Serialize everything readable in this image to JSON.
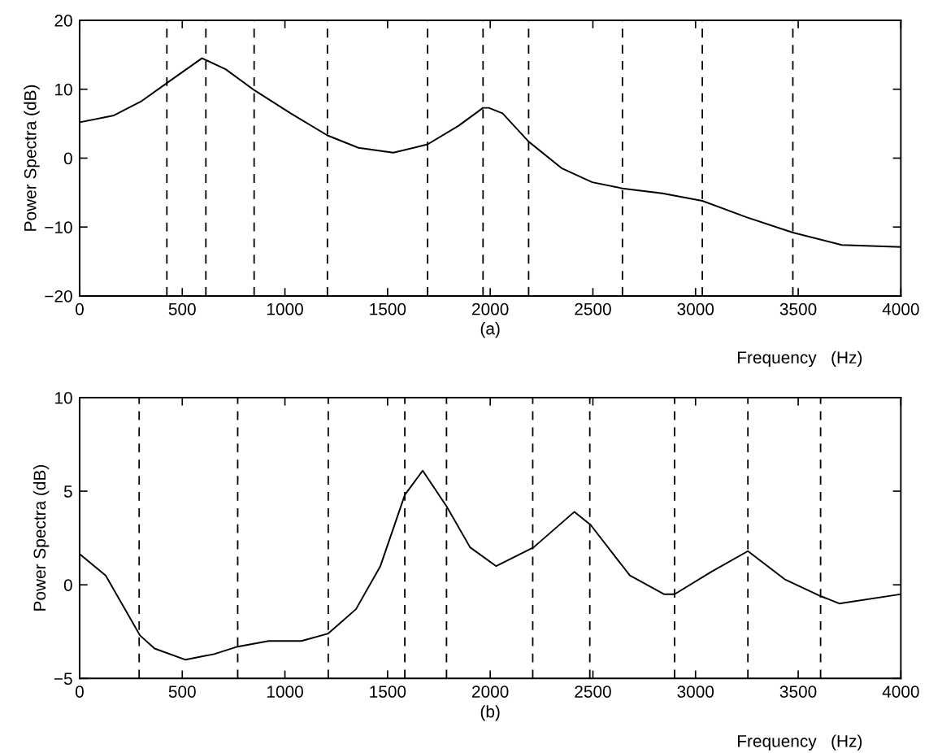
{
  "chart_data": [
    {
      "type": "line",
      "xlabel": "Frequency   (Hz)",
      "ylabel": "Power Spectra (dB)",
      "annotations": [
        "(a)"
      ],
      "xlim": [
        0,
        4000
      ],
      "ylim": [
        -20,
        20
      ],
      "xticks": [
        0,
        500,
        1000,
        1500,
        2000,
        2500,
        3000,
        3500,
        4000
      ],
      "yticks": [
        {
          "value": -20,
          "label": "−20"
        },
        {
          "value": -10,
          "label": "−10"
        },
        0,
        10,
        20
      ],
      "series": [
        {
          "color": "#000000",
          "x": [
            0,
            167,
            298,
            425,
            596,
            711,
            854,
            1028,
            1207,
            1358,
            1528,
            1695,
            1846,
            1965,
            1993,
            2060,
            2187,
            2350,
            2497,
            2644,
            2838,
            3033,
            3251,
            3474,
            3712,
            4000
          ],
          "values": [
            5.2,
            6.2,
            8.2,
            10.9,
            14.5,
            12.9,
            9.8,
            6.5,
            3.3,
            1.5,
            0.8,
            2.0,
            4.7,
            7.3,
            7.3,
            6.5,
            2.4,
            -1.5,
            -3.5,
            -4.4,
            -5.1,
            -6.2,
            -8.6,
            -10.8,
            -12.6,
            -12.9
          ]
        }
      ],
      "ref_lines": [
        {
          "axis": "x",
          "value": 425,
          "color": "#000000",
          "line_style": "dashed"
        },
        {
          "axis": "x",
          "value": 615,
          "color": "#000000",
          "line_style": "dashed"
        },
        {
          "axis": "x",
          "value": 850,
          "color": "#000000",
          "line_style": "dashed"
        },
        {
          "axis": "x",
          "value": 1207,
          "color": "#000000",
          "line_style": "dashed"
        },
        {
          "axis": "x",
          "value": 1695,
          "color": "#000000",
          "line_style": "dashed"
        },
        {
          "axis": "x",
          "value": 1965,
          "color": "#000000",
          "line_style": "dashed"
        },
        {
          "axis": "x",
          "value": 2187,
          "color": "#000000",
          "line_style": "dashed"
        },
        {
          "axis": "x",
          "value": 2644,
          "color": "#000000",
          "line_style": "dashed"
        },
        {
          "axis": "x",
          "value": 3033,
          "color": "#000000",
          "line_style": "dashed"
        },
        {
          "axis": "x",
          "value": 3474,
          "color": "#000000",
          "line_style": "dashed"
        }
      ],
      "grid": false,
      "line_style": "solid",
      "marker": "none"
    },
    {
      "type": "line",
      "xlabel": "Frequency   (Hz)",
      "ylabel": "Power Spectra (dB)",
      "annotations": [
        "(b)"
      ],
      "xlim": [
        0,
        4000
      ],
      "ylim": [
        -5,
        10
      ],
      "xticks": [
        0,
        500,
        1000,
        1500,
        2000,
        2500,
        3000,
        3500,
        4000
      ],
      "yticks": [
        {
          "value": -5,
          "label": "−5"
        },
        0,
        5,
        10
      ],
      "series": [
        {
          "color": "#000000",
          "x": [
            0,
            127,
            294,
            365,
            516,
            655,
            770,
            921,
            1080,
            1211,
            1346,
            1465,
            1584,
            1671,
            1787,
            1902,
            2029,
            2211,
            2410,
            2489,
            2680,
            2846,
            2898,
            3077,
            3255,
            3434,
            3609,
            3700,
            4000
          ],
          "values": [
            1.65,
            0.5,
            -2.7,
            -3.4,
            -4.0,
            -3.7,
            -3.3,
            -3.0,
            -3.0,
            -2.6,
            -1.3,
            1.0,
            4.8,
            6.1,
            4.2,
            2.0,
            1.0,
            2.0,
            3.9,
            3.2,
            0.5,
            -0.5,
            -0.5,
            0.7,
            1.8,
            0.3,
            -0.6,
            -1.0,
            -0.5
          ]
        }
      ],
      "ref_lines": [
        {
          "axis": "x",
          "value": 290,
          "color": "#000000",
          "line_style": "dashed"
        },
        {
          "axis": "x",
          "value": 770,
          "color": "#000000",
          "line_style": "dashed"
        },
        {
          "axis": "x",
          "value": 1211,
          "color": "#000000",
          "line_style": "dashed"
        },
        {
          "axis": "x",
          "value": 1584,
          "color": "#000000",
          "line_style": "dashed"
        },
        {
          "axis": "x",
          "value": 1787,
          "color": "#000000",
          "line_style": "dashed"
        },
        {
          "axis": "x",
          "value": 2207,
          "color": "#000000",
          "line_style": "dashed"
        },
        {
          "axis": "x",
          "value": 2485,
          "color": "#000000",
          "line_style": "dashed"
        },
        {
          "axis": "x",
          "value": 2898,
          "color": "#000000",
          "line_style": "dashed"
        },
        {
          "axis": "x",
          "value": 3255,
          "color": "#000000",
          "line_style": "dashed"
        },
        {
          "axis": "x",
          "value": 3609,
          "color": "#000000",
          "line_style": "dashed"
        }
      ],
      "grid": false,
      "line_style": "solid",
      "marker": "none"
    }
  ]
}
